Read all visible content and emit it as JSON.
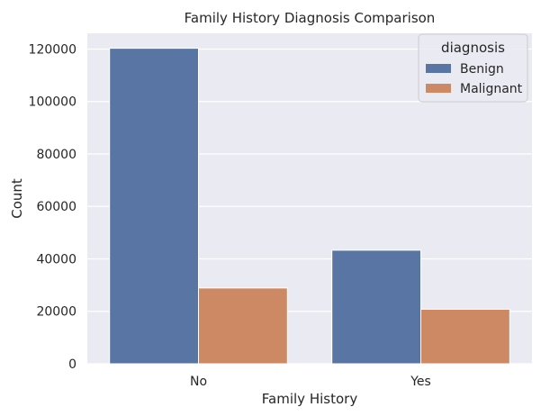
{
  "chart_data": {
    "type": "bar",
    "title": "Family History Diagnosis Comparison",
    "xlabel": "Family History",
    "ylabel": "Count",
    "categories": [
      "No",
      "Yes"
    ],
    "series": [
      {
        "name": "Benign",
        "values": [
          120300,
          43300
        ],
        "color": "#5975a4"
      },
      {
        "name": "Malignant",
        "values": [
          28900,
          20800
        ],
        "color": "#cc8963"
      }
    ],
    "ylim": [
      0,
      126000
    ],
    "yticks": [
      0,
      20000,
      40000,
      60000,
      80000,
      100000,
      120000
    ],
    "grid": true,
    "legend": {
      "title": "diagnosis",
      "placement": "top-right"
    },
    "background_color": "#eaeaf2",
    "grid_color": "#ffffff"
  }
}
